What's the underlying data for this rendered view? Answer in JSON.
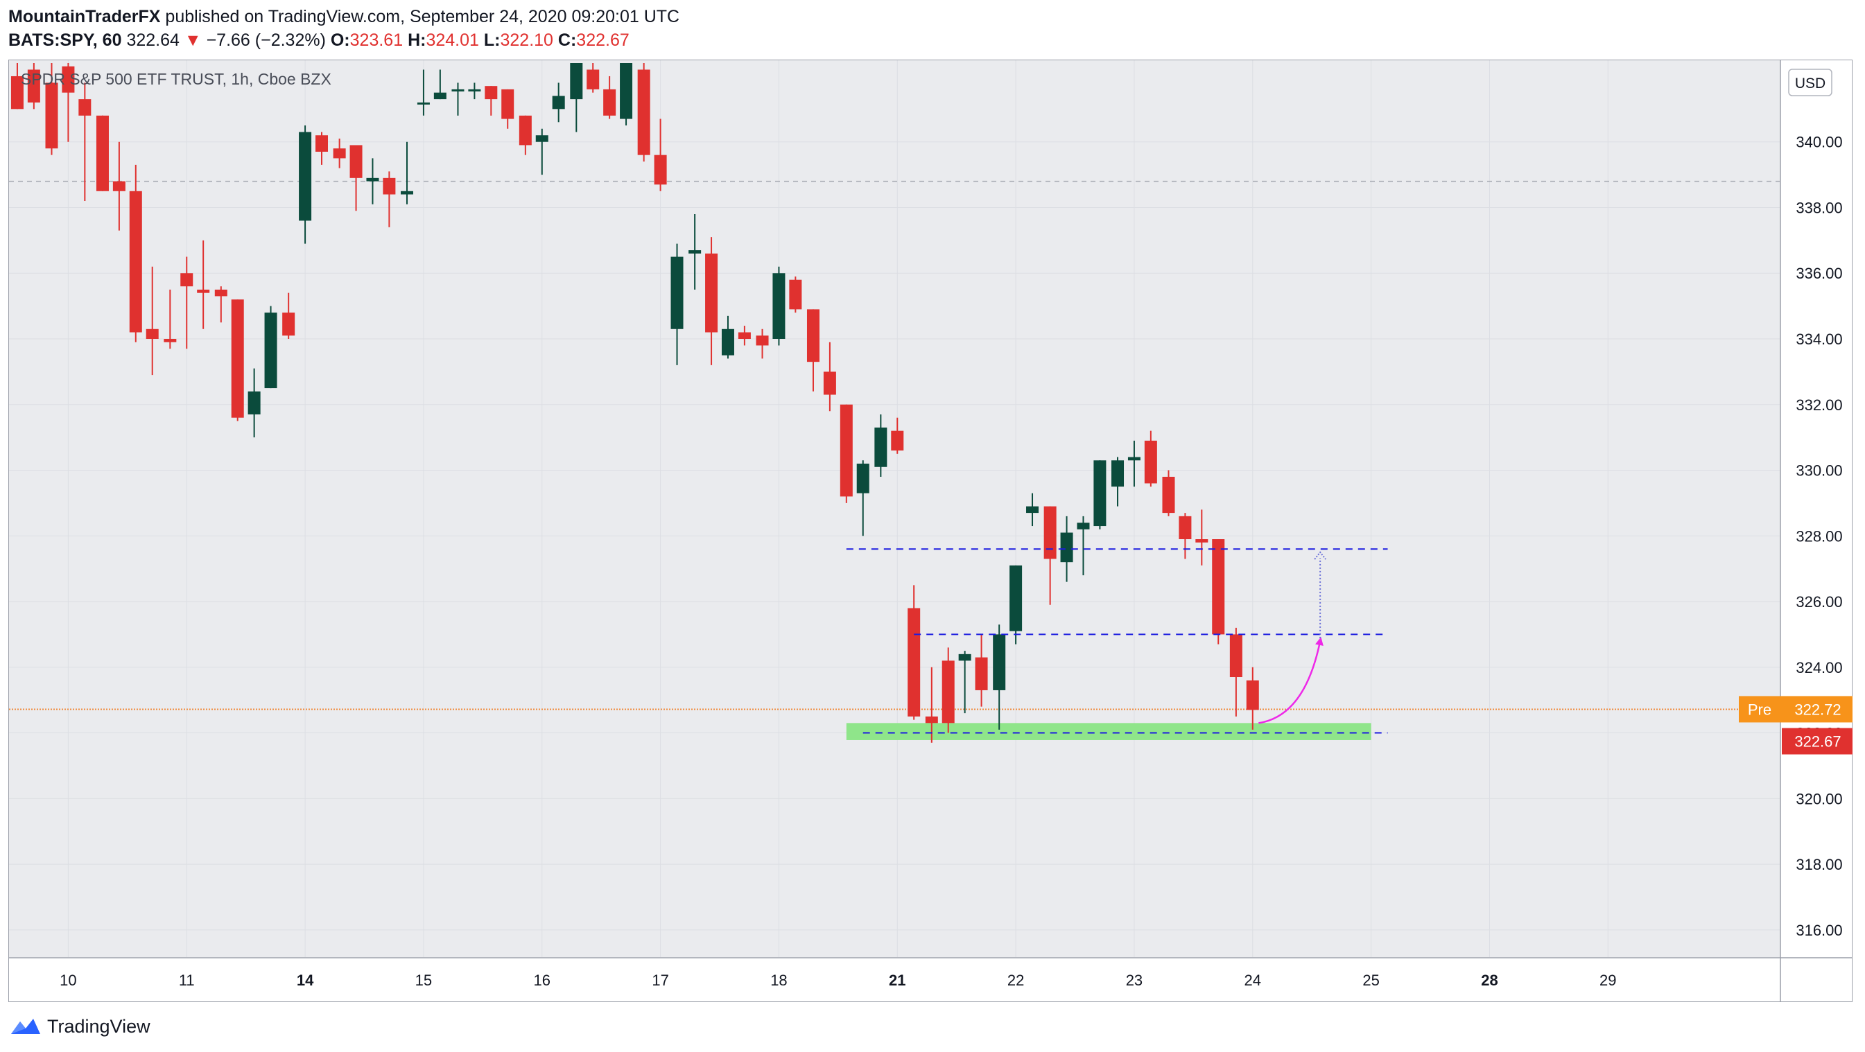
{
  "header": {
    "author": "MountainTraderFX",
    "published_text": "published on TradingView.com, September 24, 2020 09:20:01 UTC",
    "symbol": "BATS:SPY, 60",
    "last_price": "322.64",
    "change_arrow": "▼",
    "change": "−7.66 (−2.32%)",
    "o_label": "O:",
    "o_value": "323.61",
    "h_label": "H:",
    "h_value": "324.01",
    "l_label": "L:",
    "l_value": "322.10",
    "c_label": "C:",
    "c_value": "322.67"
  },
  "footer": {
    "brand": "TradingView",
    "icon": "tradingview-logo-icon"
  },
  "colors": {
    "up": "#0b4b3c",
    "down": "#e0312f",
    "plot_bg": "#eaebee",
    "level_line": "#1c1ce0",
    "support_zone": "#8fe58a",
    "projection_arrow": "#ee28e8",
    "pre_badge": "#f7931a",
    "price_badge": "#e0312f"
  },
  "chart_data": {
    "type": "candlestick",
    "title": "SPDR S&P 500 ETF TRUST, 1h, Cboe BZX",
    "currency": "USD",
    "grid": true,
    "y_ticks": [
      340,
      338,
      336,
      334,
      332,
      330,
      328,
      326,
      324,
      322,
      320,
      318,
      316
    ],
    "y_tick_labels": [
      "340.00",
      "338.00",
      "336.00",
      "334.00",
      "332.00",
      "330.00",
      "328.00",
      "326.00",
      "324.00",
      "322.00",
      "320.00",
      "318.00",
      "316.00"
    ],
    "ylim": [
      315.3,
      342.4
    ],
    "xlim": [
      -0.5,
      14.45
    ],
    "x_ticks": [
      {
        "label": "10",
        "x": 0.0,
        "bold": false
      },
      {
        "label": "11",
        "x": 1.0,
        "bold": false
      },
      {
        "label": "14",
        "x": 2.0,
        "bold": true
      },
      {
        "label": "15",
        "x": 3.0,
        "bold": false
      },
      {
        "label": "16",
        "x": 4.0,
        "bold": false
      },
      {
        "label": "17",
        "x": 5.0,
        "bold": false
      },
      {
        "label": "18",
        "x": 6.0,
        "bold": false
      },
      {
        "label": "21",
        "x": 7.0,
        "bold": true
      },
      {
        "label": "22",
        "x": 8.0,
        "bold": false
      },
      {
        "label": "23",
        "x": 9.0,
        "bold": false
      },
      {
        "label": "24",
        "x": 10.0,
        "bold": false
      },
      {
        "label": "25",
        "x": 11.0,
        "bold": false
      },
      {
        "label": "28",
        "x": 12.0,
        "bold": true
      },
      {
        "label": "29",
        "x": 13.0,
        "bold": false
      }
    ],
    "candles": [
      [
        -0.43,
        342.0,
        342.4,
        341.0,
        341.0
      ],
      [
        -0.29,
        342.2,
        342.4,
        341.0,
        341.2
      ],
      [
        -0.14,
        341.8,
        342.4,
        339.6,
        339.8
      ],
      [
        0.0,
        342.3,
        342.4,
        340.0,
        341.5
      ],
      [
        0.14,
        341.3,
        341.8,
        338.2,
        340.8
      ],
      [
        0.29,
        340.8,
        340.8,
        338.5,
        338.5
      ],
      [
        0.43,
        338.8,
        340.0,
        337.3,
        338.5
      ],
      [
        0.57,
        338.5,
        339.3,
        333.9,
        334.2
      ],
      [
        0.71,
        334.3,
        336.2,
        332.9,
        334.0
      ],
      [
        0.86,
        334.0,
        335.5,
        333.7,
        333.9
      ],
      [
        1.0,
        336.0,
        336.5,
        333.7,
        335.6
      ],
      [
        1.14,
        335.5,
        337.0,
        334.3,
        335.4
      ],
      [
        1.29,
        335.5,
        335.6,
        334.5,
        335.3
      ],
      [
        1.43,
        335.2,
        335.2,
        331.5,
        331.6
      ],
      [
        1.57,
        331.7,
        333.1,
        331.0,
        332.4
      ],
      [
        1.71,
        332.5,
        335.0,
        332.5,
        334.8
      ],
      [
        1.86,
        334.8,
        335.4,
        334.0,
        334.1
      ],
      [
        2.0,
        337.6,
        340.5,
        336.9,
        340.3
      ],
      [
        2.14,
        340.2,
        340.3,
        339.3,
        339.7
      ],
      [
        2.29,
        339.8,
        340.1,
        339.2,
        339.5
      ],
      [
        2.43,
        339.9,
        339.9,
        337.9,
        338.9
      ],
      [
        2.57,
        338.8,
        339.5,
        338.1,
        338.9
      ],
      [
        2.71,
        338.9,
        339.1,
        337.4,
        338.4
      ],
      [
        2.86,
        338.4,
        340.0,
        338.1,
        338.5
      ],
      [
        3.0,
        341.2,
        342.2,
        340.8,
        341.2
      ],
      [
        3.14,
        341.3,
        342.2,
        341.3,
        341.5
      ],
      [
        3.29,
        341.6,
        341.8,
        340.8,
        341.6
      ],
      [
        3.43,
        341.6,
        341.8,
        341.3,
        341.6
      ],
      [
        3.57,
        341.7,
        341.7,
        340.8,
        341.3
      ],
      [
        3.71,
        341.6,
        341.6,
        340.4,
        340.7
      ],
      [
        3.86,
        340.8,
        340.8,
        339.6,
        339.9
      ],
      [
        4.0,
        340.0,
        340.4,
        339.0,
        340.2
      ],
      [
        4.14,
        341.0,
        341.8,
        340.6,
        341.4
      ],
      [
        4.29,
        341.3,
        342.4,
        340.3,
        342.4
      ],
      [
        4.43,
        342.2,
        342.4,
        341.5,
        341.6
      ],
      [
        4.57,
        341.6,
        342.0,
        340.7,
        340.8
      ],
      [
        4.71,
        340.7,
        342.4,
        340.5,
        342.4
      ],
      [
        4.86,
        342.2,
        342.4,
        339.4,
        339.6
      ],
      [
        5.0,
        339.6,
        340.7,
        338.5,
        338.7
      ],
      [
        5.14,
        334.3,
        336.9,
        333.2,
        336.5
      ],
      [
        5.29,
        336.6,
        337.8,
        335.5,
        336.7
      ],
      [
        5.43,
        336.6,
        337.1,
        333.2,
        334.2
      ],
      [
        5.57,
        333.5,
        334.7,
        333.4,
        334.3
      ],
      [
        5.71,
        334.2,
        334.4,
        333.8,
        334.0
      ],
      [
        5.86,
        334.1,
        334.3,
        333.4,
        333.8
      ],
      [
        6.0,
        334.0,
        336.2,
        333.8,
        336.0
      ],
      [
        6.14,
        335.8,
        335.9,
        334.8,
        334.9
      ],
      [
        6.29,
        334.9,
        334.9,
        332.4,
        333.3
      ],
      [
        6.43,
        333.0,
        333.9,
        331.8,
        332.3
      ],
      [
        6.57,
        332.0,
        332.0,
        329.0,
        329.2
      ],
      [
        6.71,
        329.3,
        330.3,
        328.0,
        330.2
      ],
      [
        6.86,
        330.1,
        331.7,
        329.8,
        331.3
      ],
      [
        7.0,
        331.2,
        331.6,
        330.5,
        330.6
      ],
      [
        7.14,
        325.8,
        326.5,
        322.4,
        322.5
      ],
      [
        7.29,
        322.5,
        324.0,
        321.7,
        322.3
      ],
      [
        7.43,
        324.2,
        324.6,
        322.0,
        322.3
      ],
      [
        7.57,
        324.2,
        324.5,
        322.6,
        324.4
      ],
      [
        7.71,
        324.3,
        325.0,
        322.8,
        323.3
      ],
      [
        7.86,
        323.3,
        325.3,
        322.1,
        325.0
      ],
      [
        8.0,
        325.1,
        327.1,
        324.7,
        327.1
      ],
      [
        8.14,
        328.7,
        329.3,
        328.3,
        328.9
      ],
      [
        8.29,
        328.9,
        328.9,
        325.9,
        327.3
      ],
      [
        8.43,
        327.2,
        328.6,
        326.6,
        328.1
      ],
      [
        8.57,
        328.2,
        328.6,
        326.8,
        328.4
      ],
      [
        8.71,
        328.3,
        330.3,
        328.2,
        330.3
      ],
      [
        8.86,
        329.5,
        330.4,
        328.9,
        330.3
      ],
      [
        9.0,
        330.3,
        330.9,
        329.5,
        330.4
      ],
      [
        9.14,
        330.9,
        331.2,
        329.5,
        329.6
      ],
      [
        9.29,
        329.8,
        330.0,
        328.6,
        328.7
      ],
      [
        9.43,
        328.6,
        328.7,
        327.3,
        327.9
      ],
      [
        9.57,
        327.9,
        328.8,
        327.1,
        327.8
      ],
      [
        9.71,
        327.9,
        327.9,
        324.7,
        325.0
      ],
      [
        9.86,
        325.0,
        325.2,
        322.5,
        323.7
      ],
      [
        10.0,
        323.6,
        324.0,
        322.1,
        322.7
      ]
    ],
    "levels": [
      {
        "price": 327.6,
        "x_start": 6.57,
        "x_end": 11.14,
        "style": "dashed"
      },
      {
        "price": 325.0,
        "x_start": 7.14,
        "x_end": 11.14,
        "style": "dashed"
      },
      {
        "price": 322.0,
        "x_start": 6.71,
        "x_end": 11.14,
        "style": "dashed"
      }
    ],
    "zone": {
      "price_low": 321.78,
      "price_high": 322.3,
      "x_start": 6.57,
      "x_end": 11.0
    },
    "reference_line": {
      "price": 338.8
    },
    "pre_line": {
      "price": 322.72
    },
    "projection": {
      "from": [
        10.05,
        322.3
      ],
      "to": [
        10.57,
        324.8
      ],
      "target": [
        10.57,
        327.5
      ]
    },
    "badges": [
      {
        "label": "Pre",
        "value": "322.72",
        "price": 322.72
      },
      {
        "label": "",
        "value": "322.67",
        "price": 322.0
      }
    ]
  }
}
